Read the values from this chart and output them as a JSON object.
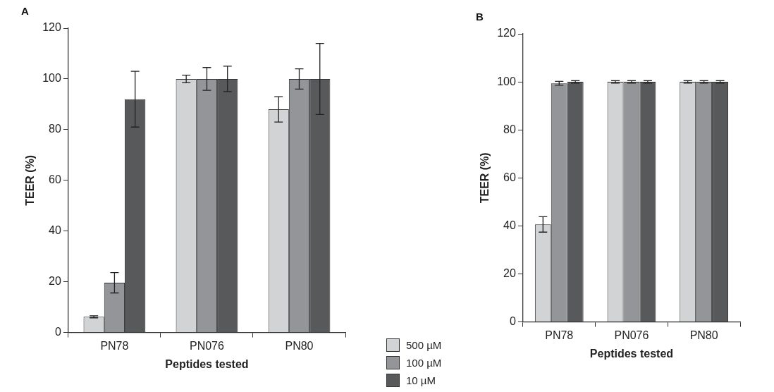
{
  "chart_data": [
    {
      "type": "bar",
      "title": "A",
      "xlabel": "Peptides tested",
      "ylabel": "TEER (%)",
      "categories": [
        "PN78",
        "PN076",
        "PN80"
      ],
      "ylim": [
        0,
        120
      ],
      "yticks": [
        0,
        20,
        40,
        60,
        80,
        100,
        120
      ],
      "grid": false,
      "legend": "bottom right",
      "series": [
        {
          "name": "500 µM",
          "color": "#d1d3d5",
          "values": [
            6.2,
            100,
            88
          ],
          "errors": [
            0.4,
            1.5,
            5
          ]
        },
        {
          "name": "100 µM",
          "color": "#939598",
          "values": [
            19.6,
            100,
            100
          ],
          "errors": [
            4,
            4.5,
            4
          ]
        },
        {
          "name": "10 µM",
          "color": "#58595b",
          "values": [
            92,
            100,
            100
          ],
          "errors": [
            11,
            5,
            14
          ]
        }
      ]
    },
    {
      "type": "bar",
      "title": "B",
      "xlabel": "Peptides tested",
      "ylabel": "TEER (%)",
      "categories": [
        "PN78",
        "PN076",
        "PN80"
      ],
      "ylim": [
        0,
        120
      ],
      "yticks": [
        0,
        20,
        40,
        60,
        80,
        100,
        120
      ],
      "grid": false,
      "series": [
        {
          "color": "#d1d3d5",
          "values": [
            40.6,
            100,
            100
          ],
          "errors": [
            3.2,
            0.5,
            0.5
          ]
        },
        {
          "color": "#939598",
          "values": [
            99.4,
            100,
            100
          ],
          "errors": [
            0.8,
            0.5,
            0.5
          ]
        },
        {
          "color": "#58595b",
          "values": [
            100,
            100,
            100
          ],
          "errors": [
            0.5,
            0.5,
            0.5
          ]
        }
      ]
    }
  ]
}
